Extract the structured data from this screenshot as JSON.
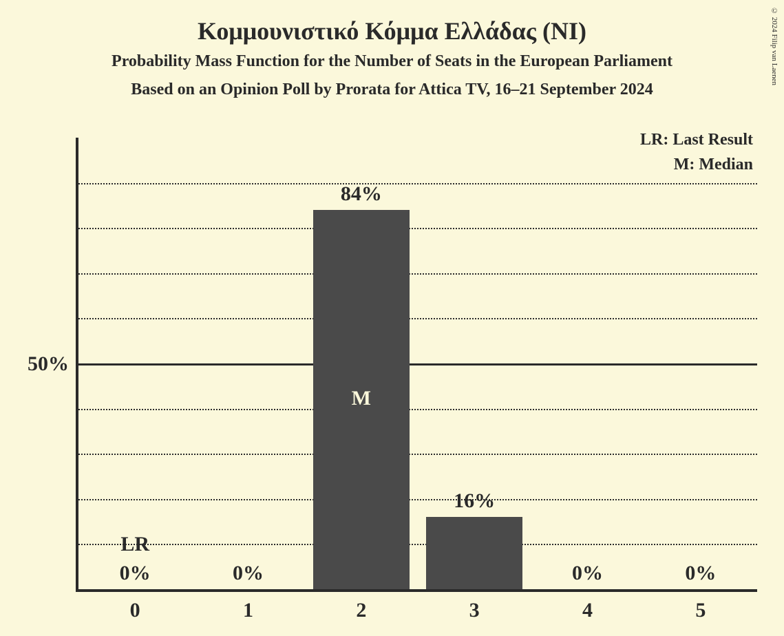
{
  "title": "Κομμουνιστικό Κόμμα Ελλάδας (NI)",
  "subtitle1": "Probability Mass Function for the Number of Seats in the European Parliament",
  "subtitle2": "Based on an Opinion Poll by Prorata for Attica TV, 16–21 September 2024",
  "copyright": "© 2024 Filip van Laenen",
  "chart": {
    "type": "bar",
    "background_color": "#fbf8db",
    "bar_color": "#4a4a4a",
    "text_color": "#2a2a2a",
    "grid_color": "#2a2a2a",
    "categories": [
      "0",
      "1",
      "2",
      "3",
      "4",
      "5"
    ],
    "values": [
      0,
      0,
      84,
      16,
      0,
      0
    ],
    "value_labels": [
      "0%",
      "0%",
      "84%",
      "16%",
      "0%",
      "0%"
    ],
    "ylim": [
      0,
      100
    ],
    "gridlines": [
      10,
      20,
      30,
      40,
      50,
      60,
      70,
      80,
      90
    ],
    "major_gridline": 50,
    "y_tick_label": "50%",
    "bar_width_ratio": 0.85,
    "last_result_index": 0,
    "median_index": 2,
    "lr_marker_text": "LR",
    "median_marker_text": "M",
    "legend_lr": "LR: Last Result",
    "legend_m": "M: Median"
  }
}
